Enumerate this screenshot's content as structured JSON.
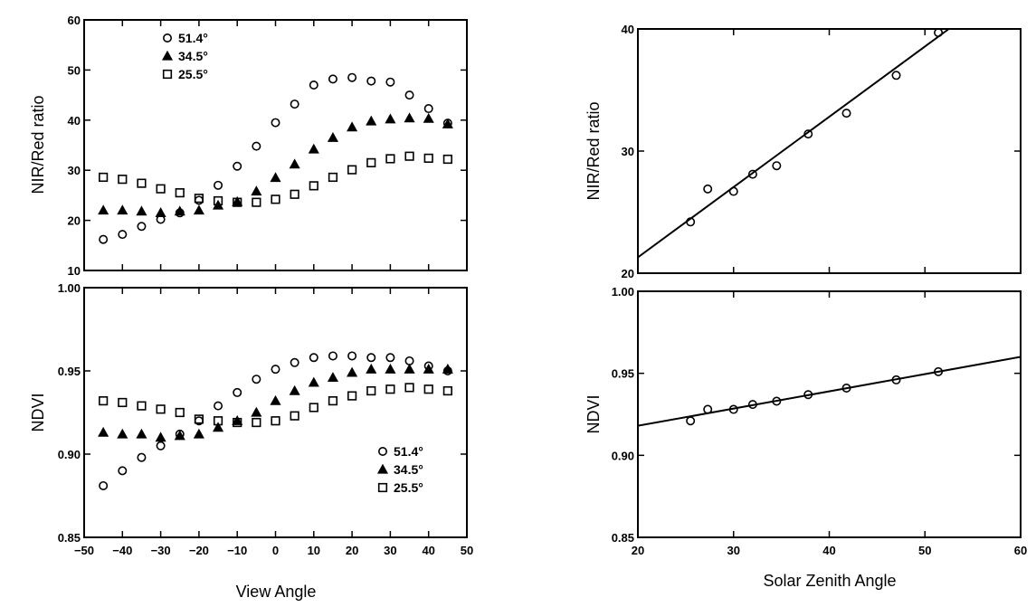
{
  "chart_data": [
    {
      "id": "tl",
      "type": "scatter",
      "title": "",
      "xlabel": "",
      "ylabel": "NIR/Red ratio",
      "xlim": [
        -50,
        50
      ],
      "ylim": [
        10,
        60
      ],
      "xticks": [],
      "yticks": [
        "10",
        "20",
        "30",
        "40",
        "50",
        "60"
      ],
      "legend_position": "top-left",
      "x": [
        -45,
        -40,
        -35,
        -30,
        -25,
        -20,
        -15,
        -10,
        -5,
        0,
        5,
        10,
        15,
        20,
        25,
        30,
        35,
        40,
        45
      ],
      "series": [
        {
          "name": "51.4°",
          "marker": "circle",
          "values": [
            16.2,
            17.2,
            18.8,
            20.2,
            21.5,
            24.0,
            27.0,
            30.8,
            34.8,
            39.5,
            43.2,
            47.0,
            48.2,
            48.5,
            47.8,
            47.6,
            45.0,
            42.3,
            39.4
          ]
        },
        {
          "name": "34.5°",
          "marker": "triangle",
          "values": [
            22.0,
            22.0,
            21.8,
            21.5,
            21.8,
            22.0,
            23.0,
            23.7,
            25.8,
            28.5,
            31.2,
            34.2,
            36.5,
            38.6,
            39.8,
            40.2,
            40.4,
            40.3,
            39.2
          ]
        },
        {
          "name": "25.5°",
          "marker": "square",
          "values": [
            28.6,
            28.2,
            27.4,
            26.3,
            25.5,
            24.4,
            23.9,
            23.6,
            23.6,
            24.2,
            25.2,
            26.9,
            28.6,
            30.1,
            31.5,
            32.3,
            32.8,
            32.4,
            32.2
          ]
        }
      ]
    },
    {
      "id": "bl",
      "type": "scatter",
      "title": "",
      "xlabel": "View Angle",
      "ylabel": "NDVI",
      "xlim": [
        -50,
        50
      ],
      "ylim": [
        0.85,
        1.0
      ],
      "xticks": [
        "−50",
        "−40",
        "−30",
        "−20",
        "−10",
        "0",
        "10",
        "20",
        "30",
        "40",
        "50"
      ],
      "yticks": [
        "0.85",
        "0.90",
        "0.95",
        "1.00"
      ],
      "legend_position": "bottom-right",
      "x": [
        -45,
        -40,
        -35,
        -30,
        -25,
        -20,
        -15,
        -10,
        -5,
        0,
        5,
        10,
        15,
        20,
        25,
        30,
        35,
        40,
        45
      ],
      "series": [
        {
          "name": "51.4°",
          "marker": "circle",
          "values": [
            0.881,
            0.89,
            0.898,
            0.905,
            0.912,
            0.92,
            0.929,
            0.937,
            0.945,
            0.951,
            0.955,
            0.958,
            0.959,
            0.959,
            0.958,
            0.958,
            0.956,
            0.953,
            0.95
          ]
        },
        {
          "name": "34.5°",
          "marker": "triangle",
          "values": [
            0.913,
            0.912,
            0.912,
            0.91,
            0.911,
            0.912,
            0.916,
            0.92,
            0.925,
            0.932,
            0.938,
            0.943,
            0.946,
            0.949,
            0.951,
            0.951,
            0.951,
            0.951,
            0.951
          ]
        },
        {
          "name": "25.5°",
          "marker": "square",
          "values": [
            0.932,
            0.931,
            0.929,
            0.927,
            0.925,
            0.921,
            0.92,
            0.919,
            0.919,
            0.92,
            0.923,
            0.928,
            0.932,
            0.935,
            0.938,
            0.939,
            0.94,
            0.939,
            0.938
          ]
        }
      ]
    },
    {
      "id": "tr",
      "type": "scatter",
      "title": "",
      "xlabel": "",
      "ylabel": "NIR/Red ratio",
      "xlim": [
        20,
        60
      ],
      "ylim": [
        20,
        40
      ],
      "xticks": [],
      "yticks": [
        "20",
        "30",
        "40"
      ],
      "series": [
        {
          "name": "",
          "marker": "circle",
          "x": [
            25.5,
            27.3,
            30.0,
            32.0,
            34.5,
            37.8,
            41.8,
            47.0,
            51.4
          ],
          "values": [
            24.2,
            26.9,
            26.7,
            28.1,
            28.8,
            31.4,
            33.1,
            36.2,
            39.7
          ]
        }
      ],
      "fit_line": {
        "x": [
          20,
          52.5
        ],
        "y": [
          21.3,
          40.0
        ]
      }
    },
    {
      "id": "br",
      "type": "scatter",
      "title": "",
      "xlabel": "Solar Zenith Angle",
      "ylabel": "NDVI",
      "xlim": [
        20,
        60
      ],
      "ylim": [
        0.85,
        1.0
      ],
      "xticks": [
        "20",
        "30",
        "40",
        "50",
        "60"
      ],
      "yticks": [
        "0.85",
        "0.90",
        "0.95",
        "1.00"
      ],
      "series": [
        {
          "name": "",
          "marker": "circle",
          "x": [
            25.5,
            27.3,
            30.0,
            32.0,
            34.5,
            37.8,
            41.8,
            47.0,
            51.4
          ],
          "values": [
            0.921,
            0.928,
            0.928,
            0.931,
            0.933,
            0.937,
            0.941,
            0.946,
            0.951
          ]
        }
      ],
      "fit_line": {
        "x": [
          20,
          60
        ],
        "y": [
          0.918,
          0.96
        ]
      }
    }
  ]
}
